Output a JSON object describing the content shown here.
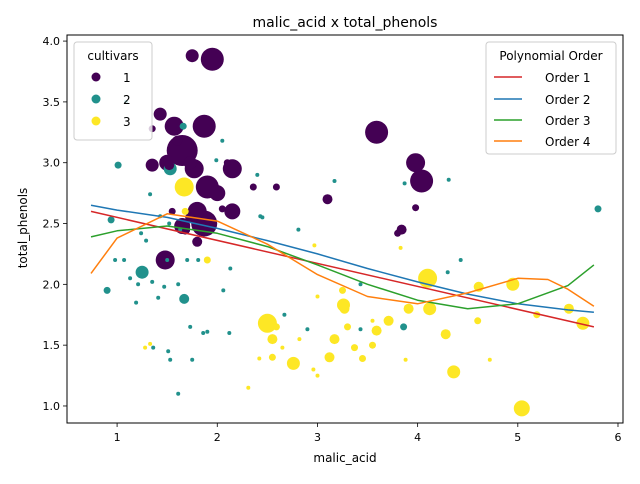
{
  "chart_data": {
    "type": "scatter",
    "title": "malic_acid x total_phenols",
    "xlabel": "malic_acid",
    "ylabel": "total_phenols",
    "xlim": [
      0.5,
      6.05
    ],
    "ylim": [
      0.86,
      4.05
    ],
    "xticks": [
      1,
      2,
      3,
      4,
      5,
      6
    ],
    "yticks": [
      1.0,
      1.5,
      2.0,
      2.5,
      3.0,
      3.5,
      4.0
    ],
    "grid": false,
    "legends": {
      "cultivars": {
        "title": "cultivars",
        "placement": "top-left",
        "entries": [
          {
            "label": "1",
            "color": "#440154"
          },
          {
            "label": "2",
            "color": "#21918c"
          },
          {
            "label": "3",
            "color": "#fde725"
          }
        ]
      },
      "poly": {
        "title": "Polynomial Order",
        "placement": "top-right",
        "entries": [
          {
            "label": "Order 1",
            "color": "#d62728"
          },
          {
            "label": "Order 2",
            "color": "#1f77b4"
          },
          {
            "label": "Order 3",
            "color": "#2ca02c"
          },
          {
            "label": "Order 4",
            "color": "#ff7f0e"
          }
        ]
      }
    },
    "colors": {
      "1": "#440154",
      "2": "#21918c",
      "3": "#fde725"
    },
    "points": [
      [
        1.75,
        3.88,
        1,
        5
      ],
      [
        1.95,
        3.85,
        1,
        8
      ],
      [
        1.43,
        3.4,
        1,
        5
      ],
      [
        1.57,
        3.3,
        1,
        7
      ],
      [
        1.87,
        3.3,
        1,
        8
      ],
      [
        1.65,
        3.1,
        1,
        10
      ],
      [
        1.35,
        2.98,
        1,
        5
      ],
      [
        1.5,
        3.0,
        1,
        6
      ],
      [
        1.77,
        2.95,
        1,
        7
      ],
      [
        2.15,
        2.95,
        1,
        7
      ],
      [
        1.9,
        2.8,
        1,
        8
      ],
      [
        2.0,
        2.75,
        1,
        6
      ],
      [
        1.8,
        2.6,
        1,
        7
      ],
      [
        2.15,
        2.6,
        1,
        6
      ],
      [
        1.87,
        2.5,
        1,
        9
      ],
      [
        1.65,
        2.48,
        1,
        6
      ],
      [
        1.48,
        2.2,
        1,
        7
      ],
      [
        1.8,
        2.35,
        1,
        4
      ],
      [
        3.59,
        3.25,
        1,
        8
      ],
      [
        3.98,
        3.0,
        1,
        7
      ],
      [
        4.04,
        2.85,
        1,
        8
      ],
      [
        3.1,
        2.7,
        1,
        4
      ],
      [
        2.36,
        2.8,
        1,
        3
      ],
      [
        2.59,
        2.8,
        1,
        3
      ],
      [
        3.84,
        2.45,
        1,
        4
      ],
      [
        3.8,
        2.42,
        1,
        3
      ],
      [
        3.98,
        2.63,
        1,
        3
      ],
      [
        1.52,
        2.98,
        1,
        4
      ],
      [
        1.73,
        2.55,
        1,
        4
      ],
      [
        1.55,
        2.6,
        1,
        3
      ],
      [
        1.68,
        2.45,
        1,
        4
      ],
      [
        1.35,
        3.28,
        1,
        3
      ],
      [
        2.1,
        3.0,
        1,
        3
      ],
      [
        1.6,
        3.18,
        1,
        4
      ],
      [
        1.73,
        3.0,
        1,
        5
      ],
      [
        2.05,
        2.62,
        1,
        3
      ],
      [
        1.53,
        2.95,
        2,
        5
      ],
      [
        1.25,
        2.1,
        2,
        5
      ],
      [
        0.94,
        2.53,
        2,
        3
      ],
      [
        1.01,
        2.98,
        2,
        3
      ],
      [
        1.67,
        1.88,
        2,
        4
      ],
      [
        0.9,
        1.95,
        2,
        3
      ],
      [
        1.51,
        1.45,
        2,
        2
      ],
      [
        1.53,
        1.38,
        2,
        2
      ],
      [
        1.75,
        1.38,
        2,
        2
      ],
      [
        3.86,
        1.65,
        2,
        3
      ],
      [
        5.8,
        2.62,
        2,
        3
      ],
      [
        1.99,
        3.02,
        2,
        2
      ],
      [
        1.66,
        3.3,
        2,
        3
      ],
      [
        2.05,
        3.18,
        2,
        2
      ],
      [
        1.61,
        1.1,
        2,
        2
      ],
      [
        2.45,
        2.55,
        2,
        2
      ],
      [
        1.35,
        2.02,
        2,
        2
      ],
      [
        1.13,
        2.05,
        2,
        2
      ],
      [
        0.98,
        2.2,
        2,
        2
      ],
      [
        1.09,
        3.5,
        2,
        2
      ],
      [
        1.19,
        1.85,
        2,
        2
      ],
      [
        1.21,
        2.0,
        2,
        2
      ],
      [
        1.24,
        2.42,
        2,
        2
      ],
      [
        1.29,
        2.36,
        2,
        2
      ],
      [
        1.36,
        1.48,
        2,
        2
      ],
      [
        1.41,
        1.89,
        2,
        2
      ],
      [
        1.43,
        2.56,
        2,
        2
      ],
      [
        1.47,
        1.98,
        2,
        2
      ],
      [
        1.5,
        2.2,
        2,
        2
      ],
      [
        1.52,
        2.5,
        2,
        2
      ],
      [
        1.61,
        2.0,
        2,
        2
      ],
      [
        1.63,
        2.45,
        2,
        2
      ],
      [
        1.7,
        2.2,
        2,
        2
      ],
      [
        1.73,
        1.65,
        2,
        2
      ],
      [
        1.81,
        2.2,
        2,
        2
      ],
      [
        1.86,
        1.6,
        2,
        2
      ],
      [
        1.9,
        1.61,
        2,
        2
      ],
      [
        2.06,
        1.95,
        2,
        2
      ],
      [
        2.12,
        1.6,
        2,
        2
      ],
      [
        2.13,
        2.13,
        2,
        2
      ],
      [
        2.4,
        2.9,
        2,
        2
      ],
      [
        2.43,
        2.56,
        2,
        2
      ],
      [
        2.67,
        1.75,
        2,
        2
      ],
      [
        2.81,
        2.45,
        2,
        2
      ],
      [
        2.9,
        1.63,
        2,
        2
      ],
      [
        3.17,
        2.85,
        2,
        2
      ],
      [
        3.43,
        1.63,
        2,
        2
      ],
      [
        3.43,
        2.0,
        2,
        2
      ],
      [
        3.87,
        2.83,
        2,
        2
      ],
      [
        4.31,
        2.86,
        2,
        2
      ],
      [
        4.43,
        2.2,
        2,
        2
      ],
      [
        4.3,
        2.1,
        2,
        2
      ],
      [
        1.33,
        2.74,
        2,
        2
      ],
      [
        1.07,
        2.2,
        2,
        2
      ],
      [
        1.67,
        2.8,
        3,
        7
      ],
      [
        1.68,
        2.6,
        3,
        3
      ],
      [
        1.9,
        2.2,
        3,
        3
      ],
      [
        1.33,
        1.51,
        3,
        2
      ],
      [
        1.28,
        1.48,
        3,
        2
      ],
      [
        2.5,
        1.68,
        3,
        7
      ],
      [
        2.55,
        1.55,
        3,
        4
      ],
      [
        2.59,
        1.65,
        3,
        3
      ],
      [
        2.76,
        1.35,
        3,
        5
      ],
      [
        2.55,
        1.4,
        3,
        3
      ],
      [
        2.42,
        1.39,
        3,
        2
      ],
      [
        2.31,
        1.15,
        3,
        2
      ],
      [
        2.65,
        1.48,
        3,
        2
      ],
      [
        2.82,
        1.55,
        3,
        2
      ],
      [
        2.96,
        1.3,
        3,
        2
      ],
      [
        3.0,
        1.25,
        3,
        2
      ],
      [
        3.0,
        1.9,
        3,
        2
      ],
      [
        2.97,
        2.32,
        3,
        2
      ],
      [
        3.12,
        1.4,
        3,
        4
      ],
      [
        3.17,
        1.55,
        3,
        4
      ],
      [
        3.26,
        1.83,
        3,
        5
      ],
      [
        3.3,
        1.65,
        3,
        3
      ],
      [
        3.25,
        1.95,
        3,
        3
      ],
      [
        3.37,
        1.48,
        3,
        3
      ],
      [
        3.45,
        1.39,
        3,
        3
      ],
      [
        3.55,
        1.5,
        3,
        3
      ],
      [
        3.59,
        1.62,
        3,
        4
      ],
      [
        3.71,
        1.7,
        3,
        4
      ],
      [
        3.83,
        2.3,
        3,
        2
      ],
      [
        3.88,
        1.38,
        3,
        2
      ],
      [
        3.91,
        1.8,
        3,
        4
      ],
      [
        4.1,
        2.05,
        3,
        7
      ],
      [
        4.12,
        1.8,
        3,
        5
      ],
      [
        4.28,
        1.59,
        3,
        4
      ],
      [
        4.36,
        1.28,
        3,
        5
      ],
      [
        4.6,
        1.7,
        3,
        3
      ],
      [
        4.61,
        1.98,
        3,
        4
      ],
      [
        4.72,
        1.38,
        3,
        2
      ],
      [
        4.95,
        2.0,
        3,
        5
      ],
      [
        5.04,
        0.98,
        3,
        6
      ],
      [
        5.19,
        1.75,
        3,
        3
      ],
      [
        5.51,
        1.8,
        3,
        4
      ],
      [
        5.65,
        1.68,
        3,
        5
      ],
      [
        3.55,
        1.7,
        3,
        2
      ],
      [
        3.27,
        1.8,
        3,
        4
      ]
    ],
    "fits": {
      "Order 1": [
        [
          0.74,
          2.6
        ],
        [
          5.76,
          1.65
        ]
      ],
      "Order 2": [
        [
          0.74,
          2.65
        ],
        [
          1.0,
          2.61
        ],
        [
          1.5,
          2.55
        ],
        [
          2.0,
          2.46
        ],
        [
          2.5,
          2.36
        ],
        [
          3.0,
          2.25
        ],
        [
          3.5,
          2.13
        ],
        [
          4.0,
          2.02
        ],
        [
          4.5,
          1.92
        ],
        [
          5.0,
          1.84
        ],
        [
          5.5,
          1.79
        ],
        [
          5.76,
          1.77
        ]
      ],
      "Order 3": [
        [
          0.74,
          2.39
        ],
        [
          1.0,
          2.44
        ],
        [
          1.5,
          2.48
        ],
        [
          2.0,
          2.42
        ],
        [
          2.5,
          2.31
        ],
        [
          3.0,
          2.16
        ],
        [
          3.5,
          2.0
        ],
        [
          4.0,
          1.87
        ],
        [
          4.5,
          1.8
        ],
        [
          5.0,
          1.84
        ],
        [
          5.5,
          1.99
        ],
        [
          5.76,
          2.16
        ]
      ],
      "Order 4": [
        [
          0.74,
          2.09
        ],
        [
          1.0,
          2.38
        ],
        [
          1.5,
          2.58
        ],
        [
          2.0,
          2.52
        ],
        [
          2.5,
          2.33
        ],
        [
          3.0,
          2.08
        ],
        [
          3.5,
          1.9
        ],
        [
          4.0,
          1.84
        ],
        [
          4.5,
          1.93
        ],
        [
          5.0,
          2.05
        ],
        [
          5.3,
          2.04
        ],
        [
          5.5,
          1.96
        ],
        [
          5.76,
          1.82
        ]
      ]
    }
  }
}
